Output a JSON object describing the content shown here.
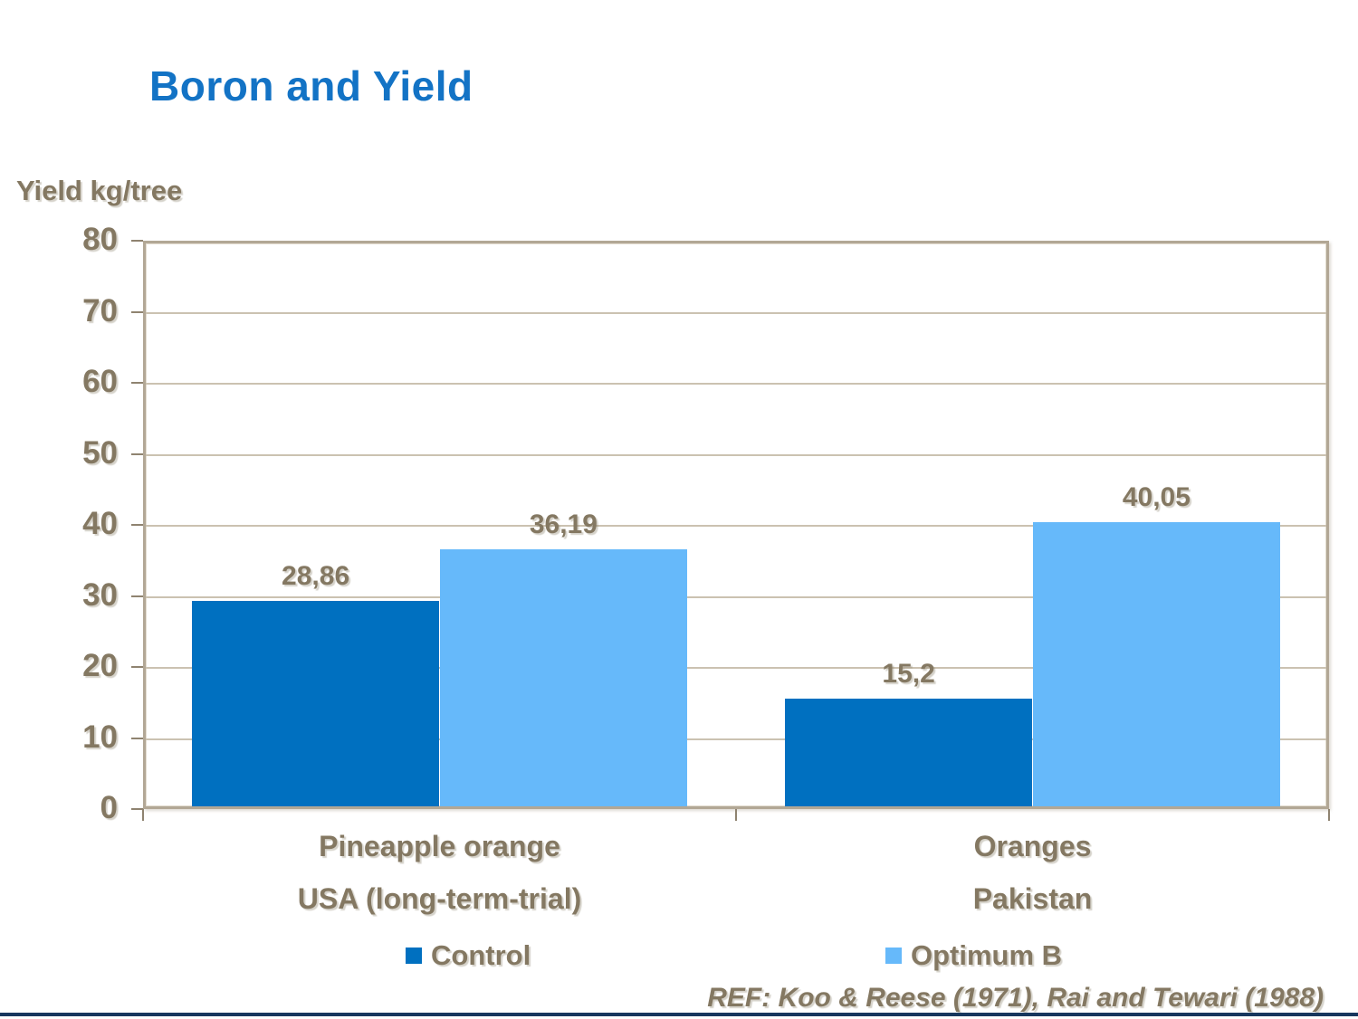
{
  "slide": {
    "title": "Boron and Yield",
    "ref_text": "REF: Koo & Reese (1971), Rai and Tewari (1988)"
  },
  "colors": {
    "title_blue": "#1373C5",
    "text_brown": "#847862",
    "control_blue": "#0070C0",
    "optimum_light_blue": "#66B9FA",
    "plot_border_tan": "#B2A795",
    "gridline_tan": "#CBC2B1",
    "bottom_rule_navy": "#17375E"
  },
  "chart_data": {
    "type": "bar",
    "title": "Boron and Yield",
    "ylabel": "Yield kg/tree",
    "xlabel": "",
    "ylim": [
      0,
      80
    ],
    "ytick_step": 10,
    "grid": true,
    "legend_position": "bottom",
    "categories": [
      "Pineapple orange",
      "Oranges"
    ],
    "category_sublabels": [
      "USA (long-term-trial)",
      "Pakistan"
    ],
    "series": [
      {
        "name": "Control",
        "color": "#0070C0",
        "values": [
          28.86,
          15.2
        ],
        "value_labels": [
          "28,86",
          "15,2"
        ]
      },
      {
        "name": "Optimum B",
        "color": "#66B9FA",
        "values": [
          36.19,
          40.05
        ],
        "value_labels": [
          "36,19",
          "40,05"
        ]
      }
    ]
  }
}
